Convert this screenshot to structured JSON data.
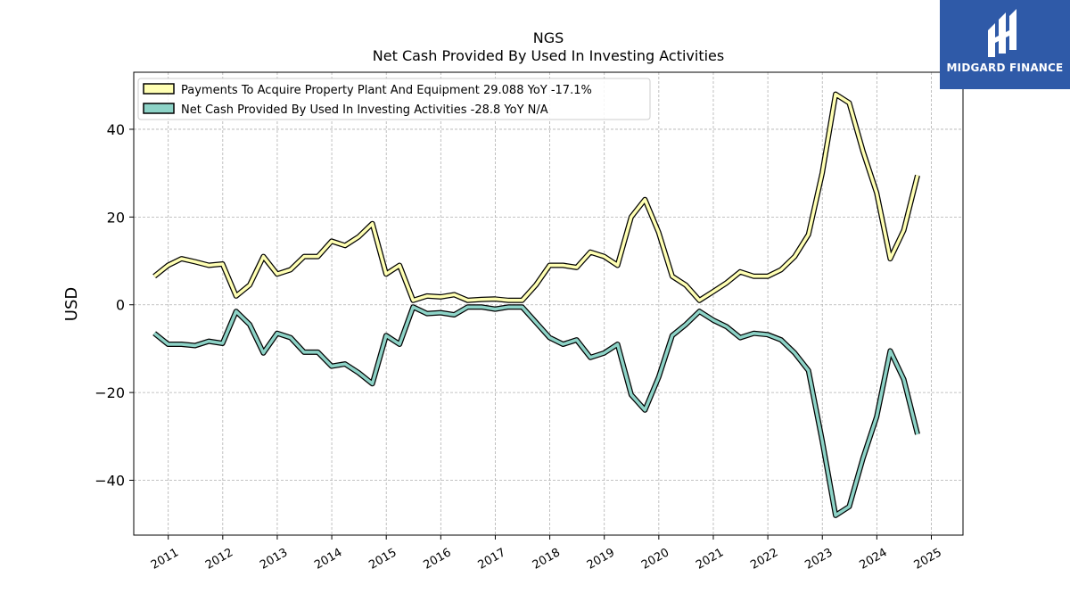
{
  "chart_data": {
    "type": "line",
    "title": "NGS",
    "subtitle": "Net Cash Provided By Used In Investing Activities",
    "ylabel": "USD",
    "xlabel": "",
    "x_ticks": [
      "2011",
      "2012",
      "2013",
      "2014",
      "2015",
      "2016",
      "2017",
      "2018",
      "2019",
      "2020",
      "2021",
      "2022",
      "2023",
      "2024",
      "2025"
    ],
    "y_ticks": [
      -40,
      -20,
      0,
      20,
      40
    ],
    "ylim": [
      -52.5,
      53
    ],
    "xlim": [
      "2010-05-15",
      "2025-08-01"
    ],
    "grid": true,
    "legend_position": "top-left",
    "x": [
      "2010-09-30",
      "2010-12-31",
      "2011-03-31",
      "2011-06-30",
      "2011-09-30",
      "2011-12-31",
      "2012-03-31",
      "2012-06-30",
      "2012-09-30",
      "2012-12-31",
      "2013-03-31",
      "2013-06-30",
      "2013-09-30",
      "2013-12-31",
      "2014-03-31",
      "2014-06-30",
      "2014-09-30",
      "2014-12-31",
      "2015-03-31",
      "2015-06-30",
      "2015-09-30",
      "2015-12-31",
      "2016-03-31",
      "2016-06-30",
      "2016-09-30",
      "2016-12-31",
      "2017-03-31",
      "2017-06-30",
      "2017-09-30",
      "2017-12-31",
      "2018-03-31",
      "2018-06-30",
      "2018-09-30",
      "2018-12-31",
      "2019-03-31",
      "2019-06-30",
      "2019-09-30",
      "2019-12-31",
      "2020-03-31",
      "2020-06-30",
      "2020-09-30",
      "2020-12-31",
      "2021-03-31",
      "2021-06-30",
      "2021-09-30",
      "2021-12-31",
      "2022-03-31",
      "2022-06-30",
      "2022-09-30",
      "2022-12-31",
      "2023-03-31",
      "2023-06-30",
      "2023-09-30",
      "2023-12-31",
      "2024-03-31",
      "2024-06-30",
      "2024-09-30"
    ],
    "series": [
      {
        "name": "Payments To Acquire Property Plant And Equipment",
        "legend": "Payments To Acquire Property Plant And Equipment  29.088 YoY -17.1%",
        "color": "#ffffb3",
        "values": [
          6.5,
          9.0,
          10.5,
          9.8,
          9.0,
          9.3,
          2.0,
          4.5,
          11.0,
          7.0,
          8.0,
          11.0,
          11.0,
          14.5,
          13.5,
          15.5,
          18.5,
          7.0,
          9.0,
          1.0,
          2.0,
          1.8,
          2.3,
          1.0,
          1.2,
          1.3,
          1.0,
          1.0,
          4.5,
          9.0,
          9.0,
          8.5,
          12.0,
          11.0,
          9.0,
          20.0,
          24.0,
          16.5,
          6.5,
          4.5,
          1.0,
          3.0,
          5.0,
          7.5,
          6.5,
          6.5,
          8.0,
          11.0,
          16.0,
          30.0,
          48.0,
          46.0,
          35.0,
          25.5,
          10.5,
          17.0,
          29.5
        ]
      },
      {
        "name": "Net Cash Provided By Used In Investing Activities",
        "legend": "Net Cash Provided By Used In Investing Activities  -28.8 YoY N/A",
        "color": "#8dd3c7",
        "values": [
          -6.5,
          -9.0,
          -9.0,
          -9.3,
          -8.3,
          -8.8,
          -1.5,
          -4.5,
          -11.0,
          -6.5,
          -7.5,
          -10.8,
          -10.8,
          -14.0,
          -13.5,
          -15.5,
          -18.0,
          -7.0,
          -9.0,
          -0.5,
          -2.0,
          -1.8,
          -2.3,
          -0.5,
          -0.5,
          -1.0,
          -0.5,
          -0.5,
          -4.0,
          -7.5,
          -9.0,
          -8.0,
          -12.0,
          -11.0,
          -9.0,
          -20.5,
          -24.0,
          -16.5,
          -7.0,
          -4.5,
          -1.5,
          -3.5,
          -5.0,
          -7.5,
          -6.5,
          -6.8,
          -8.0,
          -11.0,
          -15.0,
          -31.0,
          -48.0,
          -46.0,
          -35.0,
          -25.5,
          -10.5,
          -17.0,
          -29.5
        ]
      }
    ]
  },
  "logo": {
    "text": "MIDGARD FINANCE",
    "bg_color": "#2f5aa8"
  }
}
